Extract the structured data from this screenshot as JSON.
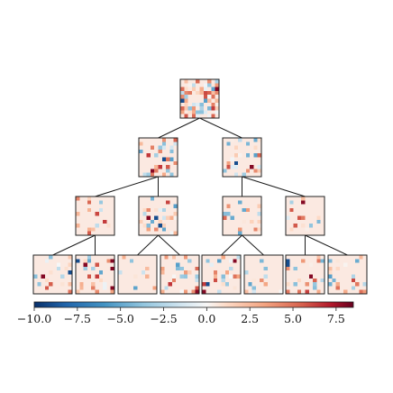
{
  "diagram": {
    "type": "tree-of-heatmaps",
    "levels": 4,
    "nodes_per_level": [
      1,
      2,
      4,
      8
    ],
    "cells_per_side": 10,
    "description_free": true
  },
  "colorbar": {
    "colormap": "RdBu_r",
    "min": -10.0,
    "max": 8.5,
    "tick_values": [
      -10.0,
      -7.5,
      -5.0,
      -2.5,
      0.0,
      2.5,
      5.0,
      7.5
    ],
    "tick_labels": [
      "−10.0",
      "−7.5",
      "−5.0",
      "−2.5",
      "0.0",
      "2.5",
      "5.0",
      "7.5"
    ]
  },
  "colors": {
    "background": "#ffffff",
    "baseline_cell": "#fbe9e1",
    "edge": "#1a1a1a"
  }
}
